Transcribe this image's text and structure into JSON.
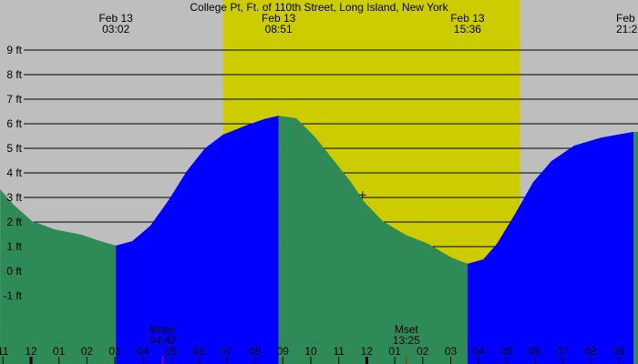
{
  "chart_data": {
    "type": "area",
    "title": "College Pt, Ft. of 110th Street, Long Island, New York",
    "y_unit": "ft",
    "ylim": [
      -1.9,
      10
    ],
    "y_ticks": [
      "9 ft",
      "8 ft",
      "7 ft",
      "6 ft",
      "5 ft",
      "4 ft",
      "3 ft",
      "2 ft",
      "1 ft",
      "0 ft",
      "-1 ft"
    ],
    "y_tick_values": [
      9,
      8,
      7,
      6,
      5,
      4,
      3,
      2,
      1,
      0,
      -1
    ],
    "grid": true,
    "x_ticks": [
      "11",
      "12",
      "01",
      "02",
      "03",
      "04",
      "05",
      "06",
      "07",
      "08",
      "09",
      "10",
      "11",
      "12",
      "01",
      "02",
      "03",
      "04",
      "05",
      "06",
      "07",
      "08",
      "09"
    ],
    "colors": {
      "background": "#bebebe",
      "daylight": "#cccc00",
      "falling": "#2e8b57",
      "rising": "#0000ff",
      "moon_marker": "#ff0000",
      "grid": "#000000"
    },
    "daylight": {
      "start": "06:52",
      "end": "17:29"
    },
    "extremes": [
      {
        "date": "Feb 13",
        "time": "03:02",
        "type": "low",
        "ft": 1.04
      },
      {
        "date": "Feb 13",
        "time": "08:51",
        "type": "high",
        "ft": 6.33
      },
      {
        "date": "Feb 13",
        "time": "15:36",
        "type": "low",
        "ft": 0.3
      },
      {
        "date": "Feb 13",
        "time": "21:2",
        "type": "high",
        "ft": 5.67
      }
    ],
    "moon": [
      {
        "label": "Mrise",
        "time": "04:42"
      },
      {
        "label": "Mset",
        "time": "13:25"
      }
    ],
    "tide_curve": [
      [
        "Feb 12 22:54",
        3.33
      ],
      [
        "Feb 12 23:23",
        2.7
      ],
      [
        "00:02",
        2.04
      ],
      [
        "00:51",
        1.7
      ],
      [
        "01:49",
        1.48
      ],
      [
        "02:29",
        1.22
      ],
      [
        "03:02",
        1.04
      ],
      [
        "03:37",
        1.22
      ],
      [
        "04:16",
        1.85
      ],
      [
        "04:55",
        2.89
      ],
      [
        "05:34",
        4.07
      ],
      [
        "06:13",
        5.0
      ],
      [
        "06:52",
        5.56
      ],
      [
        "07:41",
        5.93
      ],
      [
        "08:20",
        6.19
      ],
      [
        "08:51",
        6.33
      ],
      [
        "09:29",
        6.22
      ],
      [
        "10:08",
        5.48
      ],
      [
        "10:47",
        4.56
      ],
      [
        "11:26",
        3.63
      ],
      [
        "11:55",
        2.81
      ],
      [
        "12:34",
        2.04
      ],
      [
        "13:23",
        1.48
      ],
      [
        "14:12",
        1.11
      ],
      [
        "15:01",
        0.56
      ],
      [
        "15:36",
        0.3
      ],
      [
        "16:10",
        0.48
      ],
      [
        "16:39",
        1.11
      ],
      [
        "17:18",
        2.33
      ],
      [
        "17:57",
        3.63
      ],
      [
        "18:36",
        4.48
      ],
      [
        "19:25",
        5.11
      ],
      [
        "20:23",
        5.44
      ],
      [
        "21:32",
        5.67
      ],
      [
        "21:41",
        5.67
      ]
    ],
    "cursor": {
      "time": "11:51",
      "ft": 3.1
    }
  }
}
